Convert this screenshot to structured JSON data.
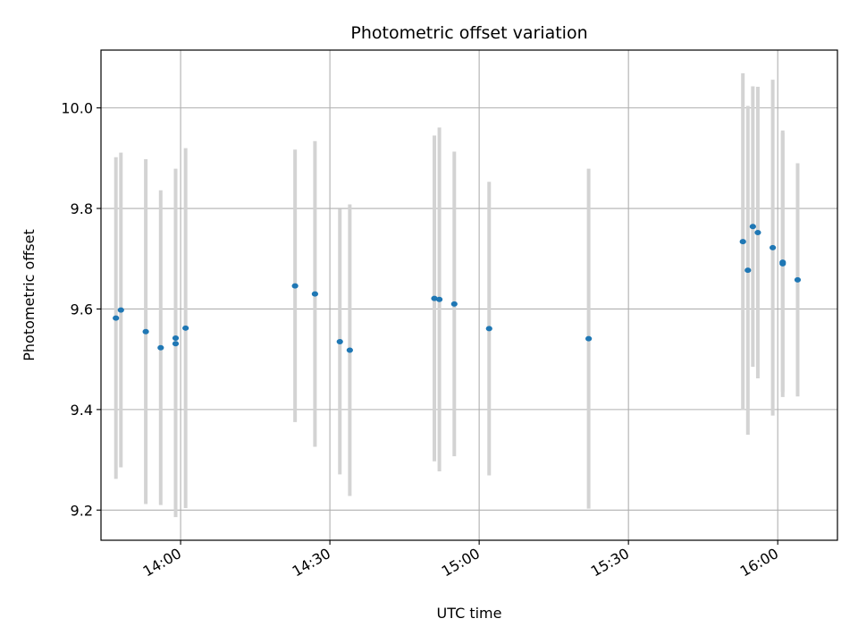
{
  "chart_data": {
    "type": "scatter",
    "title": "Photometric offset variation",
    "xlabel": "UTC time",
    "ylabel": "Photometric offset",
    "x_is_time": true,
    "xlim": [
      "13:44",
      "16:12"
    ],
    "ylim": [
      9.14,
      10.115
    ],
    "x_ticks": [
      "14:00",
      "14:30",
      "15:00",
      "15:30",
      "16:00"
    ],
    "y_ticks": [
      9.2,
      9.4,
      9.6,
      9.8,
      10.0
    ],
    "y_tick_labels": [
      "9.2",
      "9.4",
      "9.6",
      "9.8",
      "10.0"
    ],
    "grid": true,
    "colors": {
      "point": "#1f77b4",
      "errorbar": "#d3d3d3",
      "grid": "#b0b0b0",
      "axes": "#000000"
    },
    "points": [
      {
        "t": "13:47",
        "y": 9.582,
        "err": 0.32
      },
      {
        "t": "13:48",
        "y": 9.598,
        "err": 0.313
      },
      {
        "t": "13:53",
        "y": 9.555,
        "err": 0.343
      },
      {
        "t": "13:56",
        "y": 9.523,
        "err": 0.313
      },
      {
        "t": "13:59",
        "y": 9.531,
        "err": 0.345
      },
      {
        "t": "13:59",
        "y": 9.542,
        "err": 0.337
      },
      {
        "t": "14:01",
        "y": 9.562,
        "err": 0.358
      },
      {
        "t": "14:23",
        "y": 9.646,
        "err": 0.271
      },
      {
        "t": "14:27",
        "y": 9.63,
        "err": 0.304
      },
      {
        "t": "14:32",
        "y": 9.535,
        "err": 0.264
      },
      {
        "t": "14:34",
        "y": 9.518,
        "err": 0.29
      },
      {
        "t": "14:51",
        "y": 9.621,
        "err": 0.324
      },
      {
        "t": "14:52",
        "y": 9.619,
        "err": 0.342
      },
      {
        "t": "14:55",
        "y": 9.61,
        "err": 0.303
      },
      {
        "t": "15:02",
        "y": 9.561,
        "err": 0.292
      },
      {
        "t": "15:22",
        "y": 9.541,
        "err": 0.338
      },
      {
        "t": "15:53",
        "y": 9.734,
        "err": 0.335
      },
      {
        "t": "15:54",
        "y": 9.677,
        "err": 0.327
      },
      {
        "t": "15:55",
        "y": 9.764,
        "err": 0.279
      },
      {
        "t": "15:56",
        "y": 9.752,
        "err": 0.29
      },
      {
        "t": "15:59",
        "y": 9.722,
        "err": 0.334
      },
      {
        "t": "16:01",
        "y": 9.69,
        "err": 0.265
      },
      {
        "t": "16:01",
        "y": 9.693,
        "err": 0.258
      },
      {
        "t": "16:04",
        "y": 9.658,
        "err": 0.232
      }
    ]
  }
}
